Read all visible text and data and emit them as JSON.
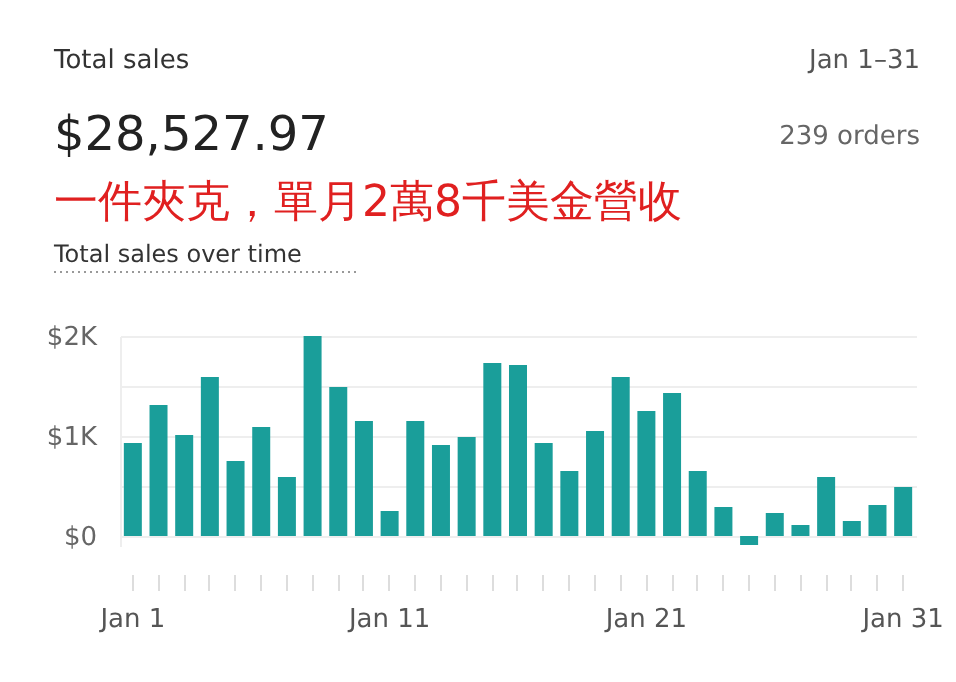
{
  "chart_data": {
    "type": "bar",
    "title": "Total sales",
    "subtitle": "Total sales over time",
    "annotations": [
      "Jan 1–31",
      "$28,527.97",
      "239 orders",
      "一件夾克，單月2萬8千美金營收"
    ],
    "categories": [
      "Jan 1",
      null,
      null,
      null,
      null,
      null,
      null,
      null,
      null,
      null,
      "Jan 11",
      null,
      null,
      null,
      null,
      null,
      null,
      null,
      null,
      null,
      "Jan 21",
      null,
      null,
      null,
      null,
      null,
      null,
      null,
      null,
      null,
      "Jan 31"
    ],
    "values": [
      930,
      1310,
      1010,
      1590,
      750,
      1090,
      590,
      2000,
      1490,
      1150,
      250,
      1150,
      910,
      990,
      1730,
      1710,
      930,
      650,
      1050,
      1590,
      1250,
      1430,
      650,
      290,
      -90,
      230,
      110,
      590,
      150,
      310,
      490
    ],
    "color": "#1a9e9a",
    "ylim": [
      -100,
      2000
    ],
    "yticks": [
      {
        "value": 0,
        "label": "$0"
      },
      {
        "value": 500,
        "label": null
      },
      {
        "value": 1000,
        "label": "$1K"
      },
      {
        "value": 1500,
        "label": null
      },
      {
        "value": 2000,
        "label": "$2K"
      }
    ],
    "grid": "y"
  }
}
